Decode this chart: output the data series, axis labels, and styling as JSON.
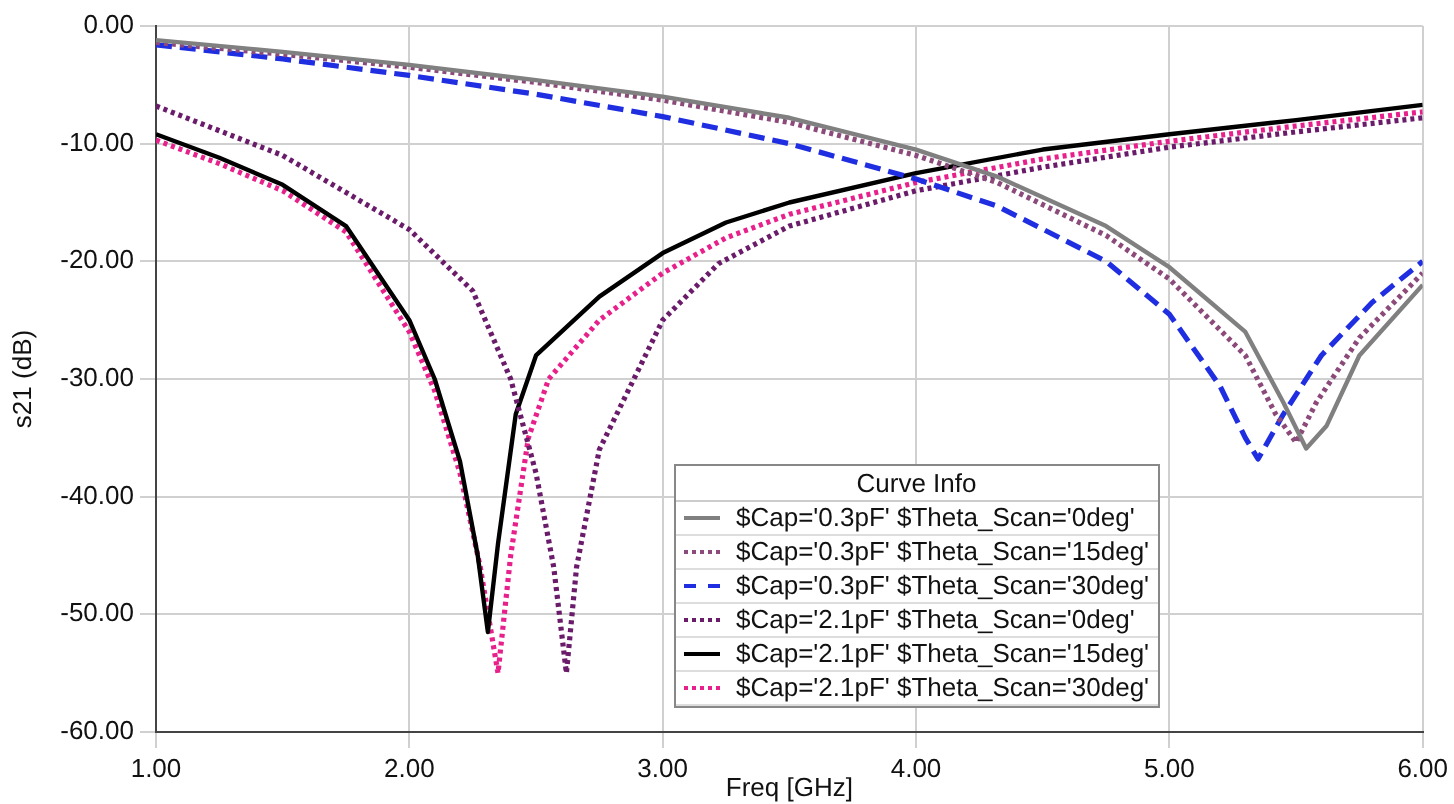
{
  "chart_data": {
    "type": "line",
    "xlabel": "Freq [GHz]",
    "ylabel": "s21 (dB)",
    "legend_title": "Curve Info",
    "legend": "bottom",
    "grid": true,
    "xlim": [
      1,
      6
    ],
    "xticks": [
      {
        "value": 1,
        "label": "1.00"
      },
      {
        "value": 2,
        "label": "2.00"
      },
      {
        "value": 3,
        "label": "3.00"
      },
      {
        "value": 4,
        "label": "4.00"
      },
      {
        "value": 5,
        "label": "5.00"
      },
      {
        "value": 6,
        "label": "6.00"
      }
    ],
    "ylim": [
      -60,
      0
    ],
    "yticks": [
      {
        "value": -60,
        "label": "-60.00"
      },
      {
        "value": -50,
        "label": "-50.00"
      },
      {
        "value": -40,
        "label": "-40.00"
      },
      {
        "value": -30,
        "label": "-30.00"
      },
      {
        "value": -20,
        "label": "-20.00"
      },
      {
        "value": -10,
        "label": "-10.00"
      },
      {
        "value": 0,
        "label": "0.00"
      }
    ],
    "series": [
      {
        "name": "$Cap='0.3pF' $Theta_Scan='0deg'",
        "color": "#808080",
        "line_style": "solid",
        "x": [
          1,
          1.5,
          2,
          2.5,
          3,
          3.5,
          4,
          4.32,
          4.75,
          5,
          5.3,
          5.45,
          5.54,
          5.62,
          5.75,
          6
        ],
        "values": [
          -1.2,
          -2.2,
          -3.3,
          -4.6,
          -6,
          -7.8,
          -10.5,
          -12.8,
          -17,
          -20.5,
          -26,
          -32,
          -35.9,
          -34,
          -28,
          -22
        ]
      },
      {
        "name": "$Cap='0.3pF' $Theta_Scan='15deg'",
        "color": "#8b4a7a",
        "line_style": "dotted",
        "x": [
          1,
          1.5,
          2,
          2.5,
          3,
          3.5,
          4,
          4.32,
          4.75,
          5,
          5.3,
          5.42,
          5.5,
          5.58,
          5.75,
          6
        ],
        "values": [
          -1.4,
          -2.4,
          -3.5,
          -4.8,
          -6.3,
          -8.2,
          -11,
          -13.3,
          -17.8,
          -21.5,
          -28,
          -33,
          -35.4,
          -32,
          -26.5,
          -21
        ]
      },
      {
        "name": "$Cap='0.3pF' $Theta_Scan='30deg'",
        "color": "#1f2ee0",
        "line_style": "dashed",
        "x": [
          1,
          1.5,
          2,
          2.5,
          3,
          3.5,
          4,
          4.32,
          4.75,
          5,
          5.2,
          5.3,
          5.35,
          5.45,
          5.6,
          5.8,
          6
        ],
        "values": [
          -1.6,
          -2.8,
          -4.2,
          -5.8,
          -7.7,
          -10,
          -13,
          -15.3,
          -20,
          -24.5,
          -30.6,
          -35,
          -36.8,
          -33,
          -28,
          -23.5,
          -20
        ]
      },
      {
        "name": "$Cap='2.1pF' $Theta_Scan='0deg'",
        "color": "#6a1b6a",
        "line_style": "dotted",
        "x": [
          1,
          1.5,
          2,
          2.25,
          2.4,
          2.5,
          2.57,
          2.62,
          2.66,
          2.75,
          3,
          3.22,
          3.5,
          4,
          4.5,
          5,
          5.5,
          6
        ],
        "values": [
          -6.8,
          -11,
          -17.3,
          -22.5,
          -30,
          -38,
          -46,
          -55,
          -46,
          -36,
          -25,
          -20.2,
          -17,
          -14,
          -12,
          -10.3,
          -9,
          -7.8
        ]
      },
      {
        "name": "$Cap='2.1pF' $Theta_Scan='15deg'",
        "color": "#000000",
        "line_style": "solid",
        "x": [
          1,
          1.25,
          1.5,
          1.75,
          2,
          2.1,
          2.2,
          2.27,
          2.31,
          2.35,
          2.42,
          2.5,
          2.75,
          3,
          3.25,
          3.5,
          4,
          4.5,
          5,
          5.5,
          6
        ],
        "values": [
          -9.2,
          -11.2,
          -13.5,
          -17,
          -25,
          -30,
          -37,
          -45,
          -51.5,
          -44,
          -33,
          -28,
          -23,
          -19.3,
          -16.7,
          -15,
          -12.5,
          -10.5,
          -9.2,
          -8,
          -6.7
        ]
      },
      {
        "name": "$Cap='2.1pF' $Theta_Scan='30deg'",
        "color": "#e8208c",
        "line_style": "dotted",
        "x": [
          1,
          1.25,
          1.5,
          1.75,
          2,
          2.1,
          2.2,
          2.28,
          2.35,
          2.4,
          2.47,
          2.55,
          2.75,
          3,
          3.25,
          3.5,
          4,
          4.5,
          5,
          5.5,
          6
        ],
        "values": [
          -9.7,
          -11.7,
          -14,
          -17.5,
          -26,
          -31,
          -38,
          -46,
          -55,
          -45,
          -35,
          -30,
          -25,
          -21,
          -18,
          -16,
          -13.3,
          -11.3,
          -9.8,
          -8.5,
          -7.3
        ]
      }
    ]
  }
}
